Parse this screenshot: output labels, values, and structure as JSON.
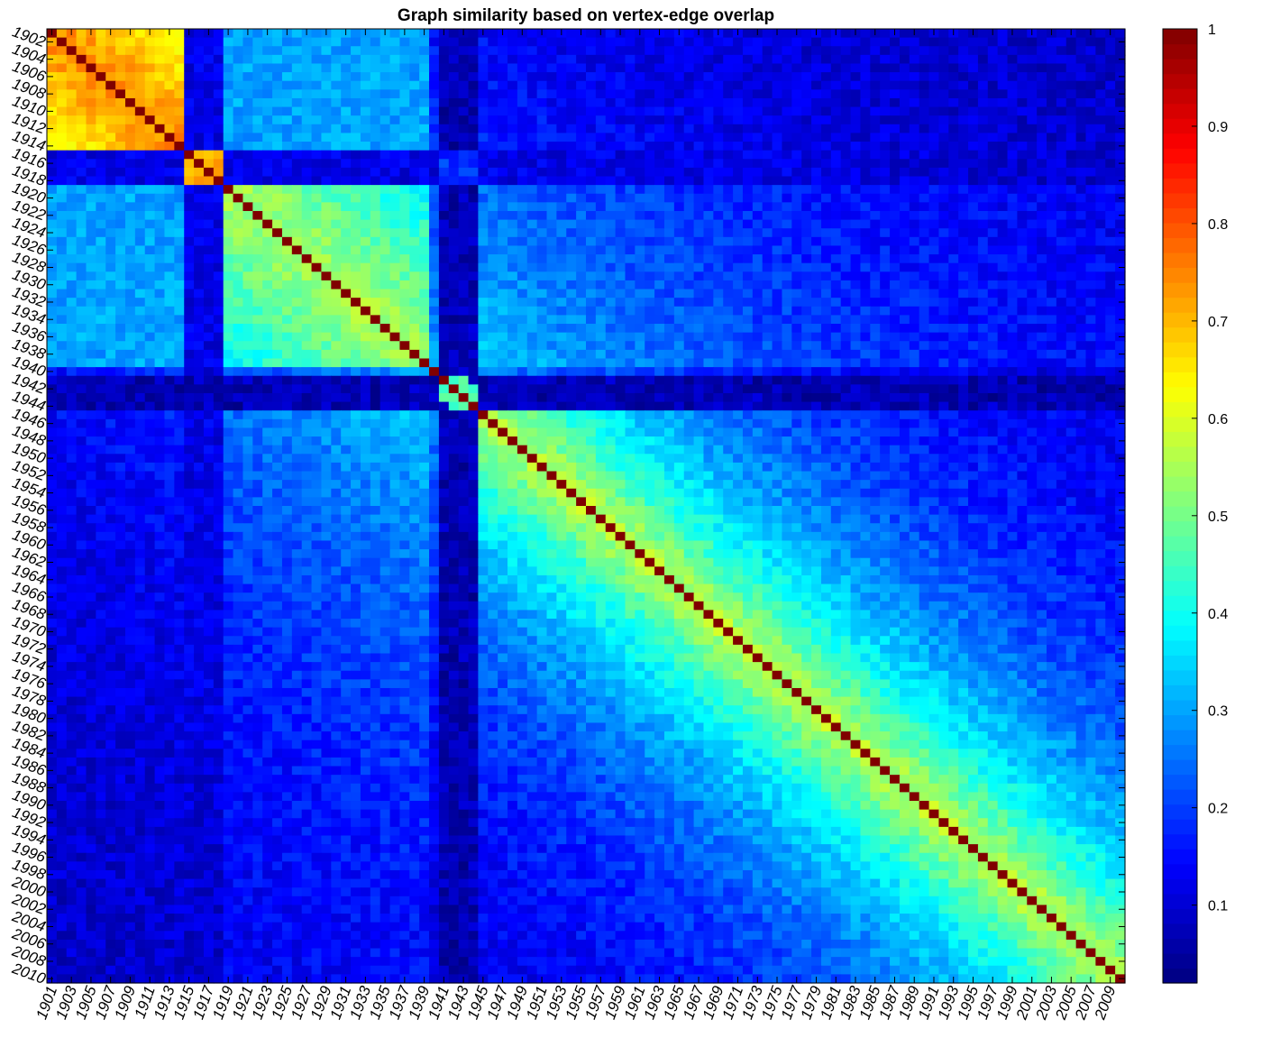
{
  "chart_data": {
    "type": "heatmap",
    "title": "Graph similarity based on vertex-edge overlap",
    "xlabel": "",
    "ylabel": "",
    "colormap": "jet",
    "clim": [
      0.02,
      1
    ],
    "years": {
      "start": 1901,
      "end": 2010
    },
    "x_tick_labels": [
      "1901",
      "1903",
      "1905",
      "1907",
      "1909",
      "1911",
      "1913",
      "1915",
      "1917",
      "1919",
      "1921",
      "1923",
      "1925",
      "1927",
      "1929",
      "1931",
      "1933",
      "1935",
      "1937",
      "1939",
      "1941",
      "1943",
      "1945",
      "1947",
      "1949",
      "1951",
      "1953",
      "1955",
      "1957",
      "1959",
      "1961",
      "1963",
      "1965",
      "1967",
      "1969",
      "1971",
      "1973",
      "1975",
      "1977",
      "1979",
      "1981",
      "1983",
      "1985",
      "1987",
      "1989",
      "1991",
      "1993",
      "1995",
      "1997",
      "1999",
      "2001",
      "2003",
      "2005",
      "2007",
      "2009"
    ],
    "y_tick_labels": [
      "1902",
      "1904",
      "1906",
      "1908",
      "1910",
      "1912",
      "1914",
      "1916",
      "1918",
      "1920",
      "1922",
      "1924",
      "1926",
      "1928",
      "1930",
      "1932",
      "1934",
      "1936",
      "1938",
      "1940",
      "1942",
      "1944",
      "1946",
      "1948",
      "1950",
      "1952",
      "1954",
      "1956",
      "1958",
      "1960",
      "1962",
      "1964",
      "1966",
      "1968",
      "1970",
      "1972",
      "1974",
      "1976",
      "1978",
      "1980",
      "1982",
      "1984",
      "1986",
      "1988",
      "1990",
      "1992",
      "1994",
      "1996",
      "1998",
      "2000",
      "2002",
      "2004",
      "2006",
      "2008",
      "2010"
    ],
    "colorbar_ticks": [
      "0.1",
      "0.2",
      "0.3",
      "0.4",
      "0.5",
      "0.6",
      "0.7",
      "0.8",
      "0.9",
      "1"
    ],
    "diagonal_value": 1,
    "blocks": [
      {
        "from": 1901,
        "to": 1914,
        "within_similarity": 0.75
      },
      {
        "from": 1915,
        "to": 1918,
        "within_similarity": 0.72
      },
      {
        "from": 1919,
        "to": 1939,
        "within_similarity": 0.55
      },
      {
        "from": 1945,
        "to": 2010,
        "within_similarity": 0.4
      }
    ],
    "low_similarity_years": [
      1915,
      1916,
      1917,
      1918,
      1941,
      1942,
      1943,
      1944
    ]
  }
}
